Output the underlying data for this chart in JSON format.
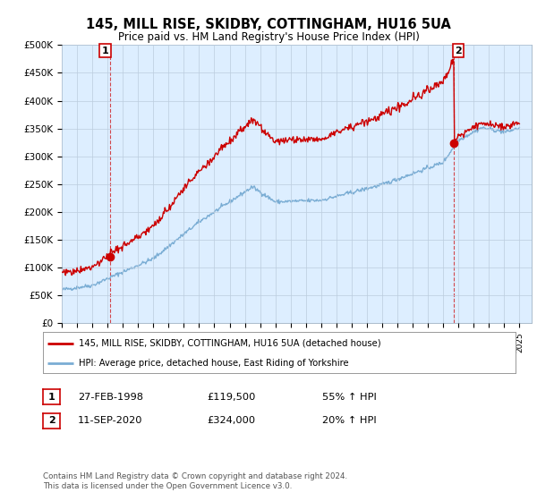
{
  "title": "145, MILL RISE, SKIDBY, COTTINGHAM, HU16 5UA",
  "subtitle": "Price paid vs. HM Land Registry's House Price Index (HPI)",
  "ylim": [
    0,
    500000
  ],
  "yticks": [
    0,
    50000,
    100000,
    150000,
    200000,
    250000,
    300000,
    350000,
    400000,
    450000,
    500000
  ],
  "ytick_labels": [
    "£0",
    "£50K",
    "£100K",
    "£150K",
    "£200K",
    "£250K",
    "£300K",
    "£350K",
    "£400K",
    "£450K",
    "£500K"
  ],
  "sale1_year": 1998.15,
  "sale1_price": 119500,
  "sale2_year": 2020.71,
  "sale2_price": 324000,
  "legend_line1": "145, MILL RISE, SKIDBY, COTTINGHAM, HU16 5UA (detached house)",
  "legend_line2": "HPI: Average price, detached house, East Riding of Yorkshire",
  "table_row1": [
    "1",
    "27-FEB-1998",
    "£119,500",
    "55% ↑ HPI"
  ],
  "table_row2": [
    "2",
    "11-SEP-2020",
    "£324,000",
    "20% ↑ HPI"
  ],
  "footer": "Contains HM Land Registry data © Crown copyright and database right 2024.\nThis data is licensed under the Open Government Licence v3.0.",
  "red_color": "#cc0000",
  "blue_color": "#7aadd4",
  "bg_chart": "#ddeeff",
  "bg_fig": "#ffffff",
  "grid_color": "#bbccdd"
}
